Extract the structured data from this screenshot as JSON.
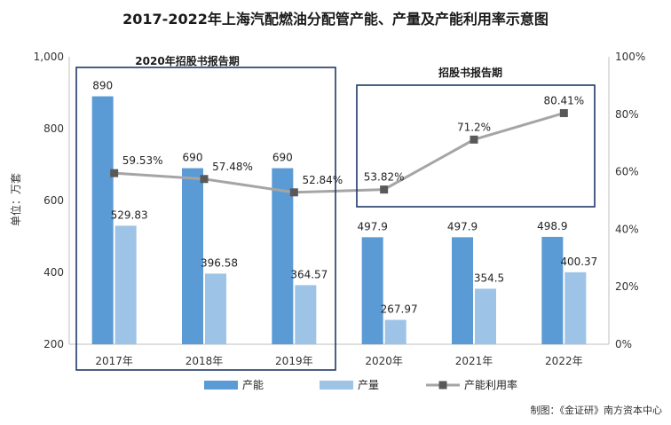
{
  "chart_data": {
    "type": "bar",
    "title": "2017-2022年上海汽配燃油分配管产能、产量及产能利用率示意图",
    "ylabel": "单位：万套",
    "categories": [
      "2017年",
      "2018年",
      "2019年",
      "2020年",
      "2021年",
      "2022年"
    ],
    "ylim": [
      200,
      1000
    ],
    "y_ticks": [
      "200",
      "400",
      "600",
      "800",
      "1,000"
    ],
    "y2lim": [
      0,
      100
    ],
    "y2_ticks": [
      "0%",
      "20%",
      "40%",
      "60%",
      "80%",
      "100%"
    ],
    "series": [
      {
        "name": "产能",
        "type": "bar",
        "axis": "left",
        "values": [
          890,
          690,
          690,
          497.9,
          497.9,
          498.9
        ],
        "labels": [
          "890",
          "690",
          "690",
          "497.9",
          "497.9",
          "498.9"
        ],
        "color": "#5b9bd5"
      },
      {
        "name": "产量",
        "type": "bar",
        "axis": "left",
        "values": [
          529.83,
          396.58,
          364.57,
          267.97,
          354.5,
          400.37
        ],
        "labels": [
          "529.83",
          "396.58",
          "364.57",
          "267.97",
          "354.5",
          "400.37"
        ],
        "color": "#9dc3e6"
      },
      {
        "name": "产能利用率",
        "type": "line",
        "axis": "right",
        "values": [
          59.53,
          57.48,
          52.84,
          53.82,
          71.2,
          80.41
        ],
        "labels": [
          "59.53%",
          "57.48%",
          "52.84%",
          "53.82%",
          "71.2%",
          "80.41%"
        ],
        "color": "#a5a5a5",
        "marker_color": "#595959"
      }
    ],
    "annotations": [
      {
        "text": "2020年招股书报告期",
        "covers_categories": [
          "2017年",
          "2018年",
          "2019年"
        ]
      },
      {
        "text": "招股书报告期",
        "covers_categories": [
          "2020年",
          "2021年",
          "2022年"
        ]
      }
    ],
    "box_color": "#1f3864",
    "grid": false,
    "legend_position": "bottom",
    "source_note": "制图：《金证研》南方资本中心"
  }
}
